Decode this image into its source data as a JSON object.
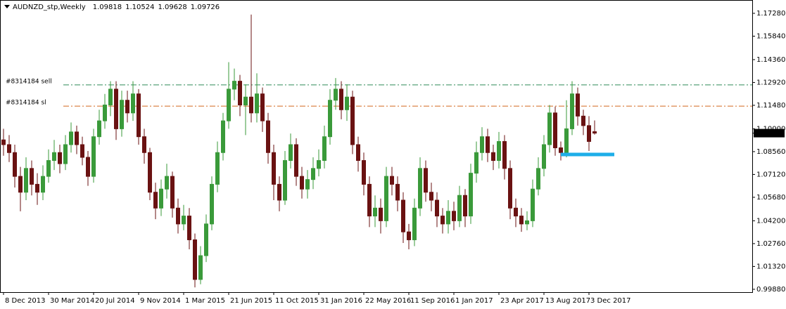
{
  "chart_data": {
    "type": "candlestick",
    "title": "AUDNZD_stp,Weekly",
    "up_color": "#3a9a3a",
    "down_color": "#6a1212",
    "ylim": [
      0.997,
      1.1812
    ],
    "yticks": [
      {
        "value": 1.1728,
        "label": "1.17280"
      },
      {
        "value": 1.1584,
        "label": "1.15840"
      },
      {
        "value": 1.1436,
        "label": "1.14360"
      },
      {
        "value": 1.1292,
        "label": "1.12920"
      },
      {
        "value": 1.1148,
        "label": "1.11480"
      },
      {
        "value": 1.1,
        "label": "1.10000"
      },
      {
        "value": 1.0856,
        "label": "1.08560"
      },
      {
        "value": 1.0712,
        "label": "1.07120"
      },
      {
        "value": 1.0568,
        "label": "1.05680"
      },
      {
        "value": 1.042,
        "label": "1.04200"
      },
      {
        "value": 1.0276,
        "label": "1.02760"
      },
      {
        "value": 1.0132,
        "label": "1.01320"
      },
      {
        "value": 0.9988,
        "label": "0.99880"
      }
    ],
    "xlim": [
      -0.625,
      133
    ],
    "xticks": [
      {
        "value": 0,
        "label": "8 Dec 2013"
      },
      {
        "value": 8,
        "label": "30 Mar 2014"
      },
      {
        "value": 16,
        "label": "20 Jul 2014"
      },
      {
        "value": 24,
        "label": "9 Nov 2014"
      },
      {
        "value": 32,
        "label": "1 Mar 2015"
      },
      {
        "value": 40,
        "label": "21 Jun 2015"
      },
      {
        "value": 48,
        "label": "11 Oct 2015"
      },
      {
        "value": 56,
        "label": "31 Jan 2016"
      },
      {
        "value": 64,
        "label": "22 May 2016"
      },
      {
        "value": 72,
        "label": "11 Sep 2016"
      },
      {
        "value": 80,
        "label": "1 Jan 2017"
      },
      {
        "value": 88,
        "label": "23 Apr 2017"
      },
      {
        "value": 96,
        "label": "13 Aug 2017"
      },
      {
        "value": 104,
        "label": "3 Dec 2017"
      }
    ],
    "open": [
      1.093,
      1.09,
      1.085,
      1.07,
      1.06,
      1.075,
      1.065,
      1.06,
      1.07,
      1.08,
      1.085,
      1.078,
      1.09,
      1.098,
      1.09,
      1.082,
      1.07,
      1.095,
      1.105,
      1.115,
      1.125,
      1.1,
      1.118,
      1.11,
      1.122,
      1.095,
      1.085,
      1.06,
      1.05,
      1.062,
      1.07,
      1.05,
      1.04,
      1.045,
      1.03,
      1.005,
      1.02,
      1.04,
      1.065,
      1.085,
      1.105,
      1.125,
      1.13,
      1.115,
      1.12,
      1.11,
      1.122,
      1.105,
      1.085,
      1.065,
      1.055,
      1.08,
      1.09,
      1.07,
      1.062,
      1.068,
      1.075,
      1.08,
      1.095,
      1.118,
      1.125,
      1.112,
      1.12,
      1.09,
      1.08,
      1.065,
      1.045,
      1.05,
      1.042,
      1.07,
      1.065,
      1.055,
      1.035,
      1.03,
      1.05,
      1.075,
      1.06,
      1.055,
      1.045,
      1.04,
      1.048,
      1.042,
      1.058,
      1.045,
      1.072,
      1.085,
      1.095,
      1.085,
      1.08,
      1.092,
      1.075,
      1.05,
      1.045,
      1.04,
      1.042,
      1.062,
      1.075,
      1.09,
      1.11,
      1.088,
      1.085,
      1.1,
      1.122,
      1.108,
      1.102,
      1.09818
    ],
    "high": [
      1.1,
      1.096,
      1.09,
      1.076,
      1.082,
      1.08,
      1.072,
      1.077,
      1.087,
      1.093,
      1.09,
      1.096,
      1.104,
      1.102,
      1.095,
      1.086,
      1.1,
      1.112,
      1.122,
      1.13,
      1.13,
      1.124,
      1.124,
      1.13,
      1.125,
      1.1,
      1.088,
      1.066,
      1.068,
      1.078,
      1.073,
      1.056,
      1.052,
      1.05,
      1.034,
      1.026,
      1.046,
      1.07,
      1.092,
      1.11,
      1.142,
      1.138,
      1.134,
      1.128,
      1.172,
      1.135,
      1.126,
      1.11,
      1.09,
      1.07,
      1.086,
      1.097,
      1.094,
      1.076,
      1.074,
      1.082,
      1.087,
      1.102,
      1.125,
      1.132,
      1.13,
      1.128,
      1.124,
      1.095,
      1.085,
      1.07,
      1.058,
      1.056,
      1.076,
      1.076,
      1.07,
      1.06,
      1.04,
      1.056,
      1.082,
      1.08,
      1.066,
      1.06,
      1.05,
      1.055,
      1.054,
      1.064,
      1.062,
      1.078,
      1.092,
      1.101,
      1.1,
      1.09,
      1.098,
      1.096,
      1.08,
      1.056,
      1.05,
      1.048,
      1.068,
      1.082,
      1.096,
      1.115,
      1.114,
      1.092,
      1.118,
      1.13,
      1.126,
      1.112,
      1.108,
      1.10524
    ],
    "low": [
      1.083,
      1.079,
      1.063,
      1.048,
      1.055,
      1.058,
      1.052,
      1.055,
      1.066,
      1.074,
      1.072,
      1.074,
      1.085,
      1.084,
      1.077,
      1.064,
      1.066,
      1.09,
      1.1,
      1.108,
      1.093,
      1.095,
      1.104,
      1.105,
      1.09,
      1.078,
      1.055,
      1.043,
      1.045,
      1.056,
      1.044,
      1.034,
      1.036,
      1.024,
      1.0,
      1.002,
      1.016,
      1.036,
      1.06,
      1.08,
      1.1,
      1.118,
      1.108,
      1.096,
      1.104,
      1.104,
      1.098,
      1.078,
      1.055,
      1.048,
      1.052,
      1.075,
      1.064,
      1.056,
      1.056,
      1.062,
      1.07,
      1.075,
      1.09,
      1.112,
      1.106,
      1.105,
      1.084,
      1.073,
      1.058,
      1.038,
      1.038,
      1.034,
      1.038,
      1.058,
      1.048,
      1.028,
      1.024,
      1.026,
      1.045,
      1.054,
      1.048,
      1.038,
      1.034,
      1.034,
      1.036,
      1.038,
      1.038,
      1.04,
      1.066,
      1.08,
      1.079,
      1.074,
      1.075,
      1.068,
      1.043,
      1.038,
      1.035,
      1.036,
      1.038,
      1.058,
      1.07,
      1.085,
      1.083,
      1.08,
      1.082,
      1.096,
      1.102,
      1.096,
      1.086,
      1.09628
    ],
    "close": [
      1.09,
      1.085,
      1.07,
      1.06,
      1.075,
      1.065,
      1.06,
      1.07,
      1.08,
      1.085,
      1.078,
      1.09,
      1.098,
      1.09,
      1.082,
      1.07,
      1.095,
      1.105,
      1.115,
      1.125,
      1.1,
      1.118,
      1.11,
      1.122,
      1.095,
      1.085,
      1.06,
      1.05,
      1.062,
      1.07,
      1.05,
      1.04,
      1.045,
      1.03,
      1.005,
      1.02,
      1.04,
      1.065,
      1.085,
      1.105,
      1.125,
      1.13,
      1.115,
      1.12,
      1.11,
      1.122,
      1.105,
      1.085,
      1.065,
      1.055,
      1.08,
      1.09,
      1.07,
      1.062,
      1.068,
      1.075,
      1.08,
      1.095,
      1.118,
      1.125,
      1.112,
      1.12,
      1.09,
      1.08,
      1.065,
      1.045,
      1.05,
      1.042,
      1.07,
      1.065,
      1.055,
      1.035,
      1.03,
      1.05,
      1.075,
      1.06,
      1.055,
      1.045,
      1.04,
      1.048,
      1.042,
      1.058,
      1.045,
      1.072,
      1.085,
      1.095,
      1.085,
      1.08,
      1.092,
      1.075,
      1.05,
      1.045,
      1.04,
      1.042,
      1.062,
      1.075,
      1.09,
      1.11,
      1.088,
      1.085,
      1.1,
      1.122,
      1.108,
      1.102,
      1.092,
      1.09726
    ],
    "levels": [
      {
        "label": "#8314184 sell",
        "value": 1.1277,
        "color": "#2e8b57"
      },
      {
        "label": "#8314184 sl",
        "value": 1.1143,
        "color": "#d2691e"
      }
    ],
    "zone": {
      "value": 1.0838,
      "from": 99,
      "to": 108.5,
      "color": "#1eaee8"
    }
  }
}
